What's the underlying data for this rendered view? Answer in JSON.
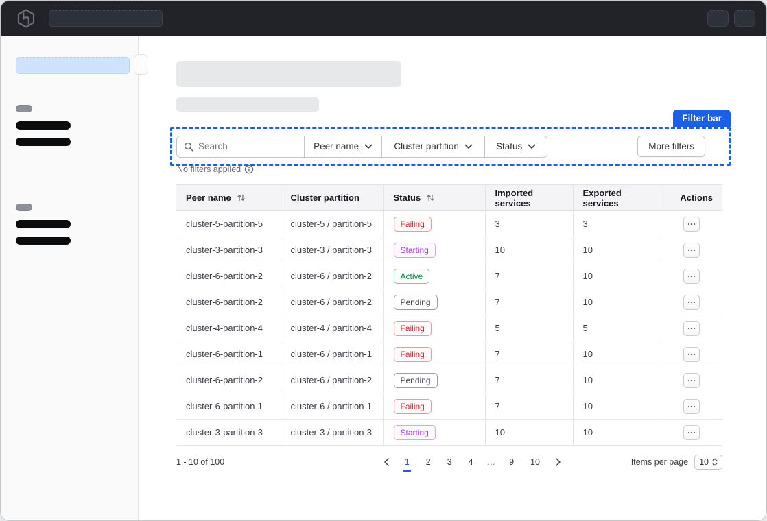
{
  "nav": {
    "logo_name": "hashicorp-logo"
  },
  "page": {
    "filter_bar_label": "Filter bar",
    "no_filters_text": "No filters applied"
  },
  "filters": {
    "search_placeholder": "Search",
    "dropdowns": [
      "Peer name",
      "Cluster partition",
      "Status"
    ],
    "more_filters_label": "More filters"
  },
  "table": {
    "columns": [
      {
        "label": "Peer name",
        "sortable": true
      },
      {
        "label": "Cluster partition",
        "sortable": false
      },
      {
        "label": "Status",
        "sortable": true
      },
      {
        "label": "Imported services",
        "sortable": false
      },
      {
        "label": "Exported services",
        "sortable": false
      },
      {
        "label": "Actions",
        "sortable": false
      }
    ],
    "rows": [
      {
        "peer_name": "cluster-5-partition-5",
        "cluster_partition": "cluster-5 / partition-5",
        "status": "Failing",
        "imported": "3",
        "exported": "3"
      },
      {
        "peer_name": "cluster-3-partition-3",
        "cluster_partition": "cluster-3 / partition-3",
        "status": "Starting",
        "imported": "10",
        "exported": "10"
      },
      {
        "peer_name": "cluster-6-partition-2",
        "cluster_partition": "cluster-6 / partition-2",
        "status": "Active",
        "imported": "7",
        "exported": "10"
      },
      {
        "peer_name": "cluster-6-partition-2",
        "cluster_partition": "cluster-6 / partition-2",
        "status": "Pending",
        "imported": "7",
        "exported": "10"
      },
      {
        "peer_name": "cluster-4-partition-4",
        "cluster_partition": "cluster-4 / partition-4",
        "status": "Failing",
        "imported": "5",
        "exported": "5"
      },
      {
        "peer_name": "cluster-6-partition-1",
        "cluster_partition": "cluster-6 / partition-1",
        "status": "Failing",
        "imported": "7",
        "exported": "10"
      },
      {
        "peer_name": "cluster-6-partition-2",
        "cluster_partition": "cluster-6 / partition-2",
        "status": "Pending",
        "imported": "7",
        "exported": "10"
      },
      {
        "peer_name": "cluster-6-partition-1",
        "cluster_partition": "cluster-6 / partition-1",
        "status": "Failing",
        "imported": "7",
        "exported": "10"
      },
      {
        "peer_name": "cluster-3-partition-3",
        "cluster_partition": "cluster-3 / partition-3",
        "status": "Starting",
        "imported": "10",
        "exported": "10"
      }
    ],
    "status_colors": {
      "Failing": "#e02934",
      "Starting": "#a438f0",
      "Active": "#128a48",
      "Pending": "#424650"
    }
  },
  "pagination": {
    "summary": "1 - 10 of 100",
    "pages": [
      "1",
      "2",
      "3",
      "4",
      "…",
      "9",
      "10"
    ],
    "active_page": "1",
    "items_per_page_label": "Items per page",
    "items_per_page_value": "10"
  },
  "icons": {
    "search": "magnifier",
    "chevron_down": "⌄",
    "sort": "↑↓",
    "info": "ⓘ",
    "ellipsis": "⋯",
    "chevron_left": "‹",
    "chevron_right": "›",
    "stepper": "⇅"
  },
  "colors": {
    "accent_blue": "#1b5fe4",
    "navbar_bg": "#212329",
    "sidebar_active_bg": "#cfe2fe"
  }
}
